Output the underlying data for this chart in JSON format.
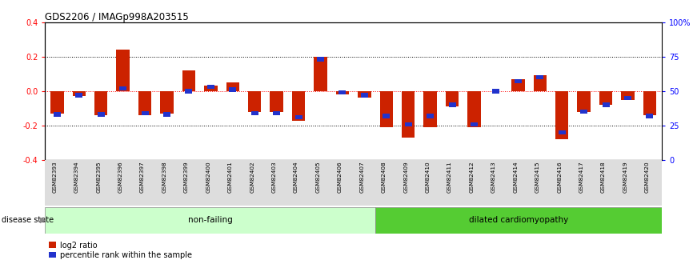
{
  "title": "GDS2206 / IMAGp998A203515",
  "samples": [
    "GSM82393",
    "GSM82394",
    "GSM82395",
    "GSM82396",
    "GSM82397",
    "GSM82398",
    "GSM82399",
    "GSM82400",
    "GSM82401",
    "GSM82402",
    "GSM82403",
    "GSM82404",
    "GSM82405",
    "GSM82406",
    "GSM82407",
    "GSM82408",
    "GSM82409",
    "GSM82410",
    "GSM82411",
    "GSM82412",
    "GSM82413",
    "GSM82414",
    "GSM82415",
    "GSM82416",
    "GSM82417",
    "GSM82418",
    "GSM82419",
    "GSM82420"
  ],
  "log2_ratio": [
    -0.13,
    -0.03,
    -0.14,
    0.24,
    -0.14,
    -0.13,
    0.12,
    0.03,
    0.05,
    -0.12,
    -0.12,
    -0.17,
    0.2,
    -0.02,
    -0.04,
    -0.21,
    -0.27,
    -0.21,
    -0.09,
    -0.21,
    0.0,
    0.07,
    0.09,
    -0.28,
    -0.12,
    -0.08,
    -0.05,
    -0.14
  ],
  "percentile_rank": [
    33,
    47,
    33,
    52,
    34,
    33,
    50,
    53,
    51,
    34,
    34,
    31,
    73,
    49,
    47,
    32,
    26,
    32,
    40,
    26,
    50,
    57,
    60,
    20,
    35,
    40,
    45,
    32
  ],
  "nonfailing_count": 15,
  "ylim": [
    -0.4,
    0.4
  ],
  "yticks_left": [
    -0.4,
    -0.2,
    0.0,
    0.2,
    0.4
  ],
  "right_yticks": [
    0,
    25,
    50,
    75,
    100
  ],
  "log2_color": "#cc2200",
  "percentile_color": "#2233cc",
  "nonfailing_color": "#ccffcc",
  "dilated_color": "#55cc33",
  "bar_width": 0.6
}
